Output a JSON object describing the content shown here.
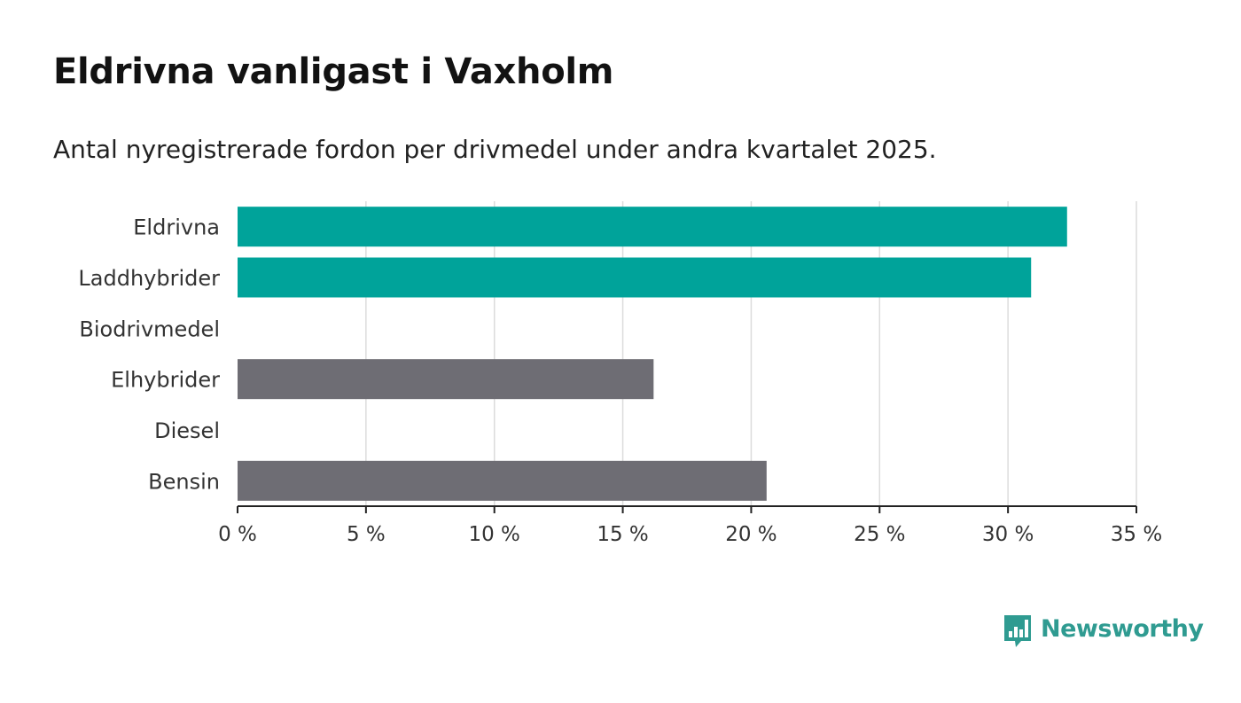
{
  "header": {
    "title": "Eldrivna vanligast i Vaxholm",
    "subtitle": "Antal nyregistrerade fordon per drivmedel under andra kvartalet 2025."
  },
  "chart_data": {
    "type": "bar",
    "orientation": "horizontal",
    "categories": [
      "Eldrivna",
      "Laddhybrider",
      "Biodrivmedel",
      "Elhybrider",
      "Diesel",
      "Bensin"
    ],
    "values": [
      32.3,
      30.9,
      0,
      16.2,
      0,
      20.6
    ],
    "bar_colors": [
      "#00a39a",
      "#00a39a",
      "#00a39a",
      "#6e6d74",
      "#6e6d74",
      "#6e6d74"
    ],
    "xlim": [
      0,
      35
    ],
    "xticks": [
      0,
      5,
      10,
      15,
      20,
      25,
      30,
      35
    ],
    "xtick_labels": [
      "0 %",
      "5 %",
      "10 %",
      "15 %",
      "20 %",
      "25 %",
      "30 %",
      "35 %"
    ],
    "grid": "vertical",
    "legend": "none"
  },
  "colors": {
    "accent": "#00a39a",
    "neutral": "#6e6d74",
    "brand": "#2f9b91"
  },
  "brand": {
    "logo_icon": "newsworthy-chart-bubble-icon",
    "name": "Newsworthy"
  }
}
